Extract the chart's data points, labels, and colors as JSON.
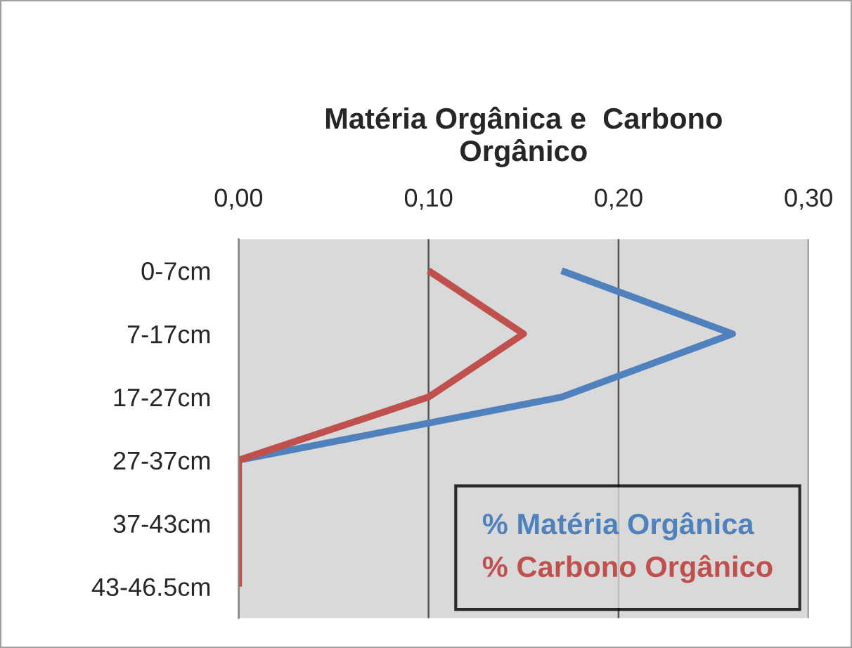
{
  "chart_data": {
    "type": "line",
    "orientation": "horizontal",
    "title": "Matéria Orgânica e  Carbono\nOrgânico",
    "categories": [
      "0-7cm",
      "7-17cm",
      "17-27cm",
      "27-37cm",
      "37-43cm",
      "43-46.5cm"
    ],
    "series": [
      {
        "name": "% Matéria Orgânica",
        "color": "#4f81bd",
        "values": [
          0.17,
          0.26,
          0.17,
          0,
          null,
          null
        ]
      },
      {
        "name": "% Carbono Orgânico",
        "color": "#c0504d",
        "values": [
          0.1,
          0.15,
          0.1,
          0,
          0,
          0
        ]
      }
    ],
    "xlim": [
      0,
      0.3
    ],
    "xticks": [
      {
        "value": 0,
        "label": "0,00"
      },
      {
        "value": 0.1,
        "label": "0,10"
      },
      {
        "value": 0.2,
        "label": "0,20"
      },
      {
        "value": 0.3,
        "label": "0,30"
      }
    ],
    "grid": "x",
    "legend": "bottom right",
    "marker": "none",
    "line_style": "solid"
  }
}
